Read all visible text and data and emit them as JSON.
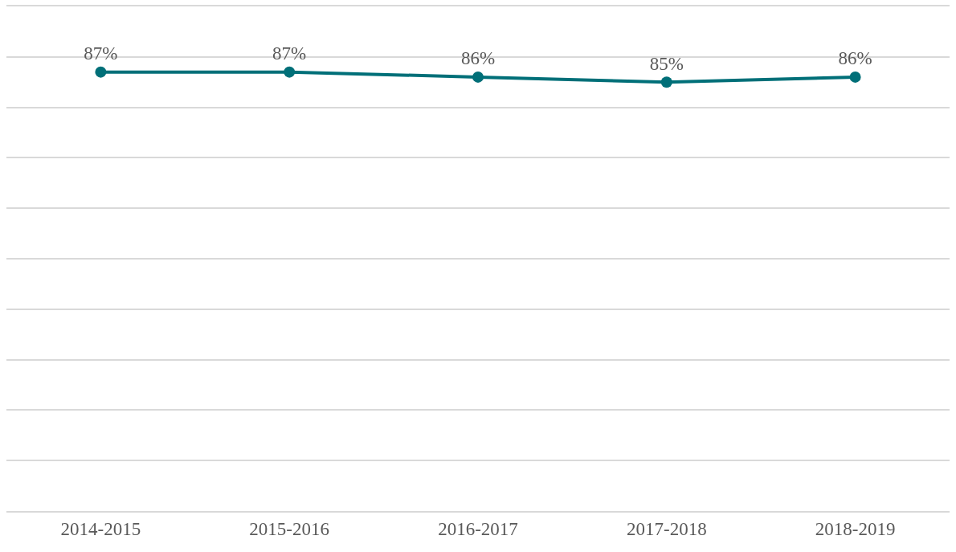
{
  "chart_data": {
    "type": "line",
    "categories": [
      "2014-2015",
      "2015-2016",
      "2016-2017",
      "2017-2018",
      "2018-2019"
    ],
    "series": [
      {
        "color": "#006f78",
        "values": [
          87,
          87,
          86,
          85,
          86
        ],
        "value_labels": [
          "87%",
          "87%",
          "86%",
          "85%",
          "86%"
        ]
      }
    ],
    "ylim": [
      0,
      100
    ],
    "yticks": [
      {
        "value": 0,
        "label": null
      },
      {
        "value": 10,
        "label": null
      },
      {
        "value": 20,
        "label": null
      },
      {
        "value": 30,
        "label": null
      },
      {
        "value": 40,
        "label": null
      },
      {
        "value": 50,
        "label": null
      },
      {
        "value": 60,
        "label": null
      },
      {
        "value": 70,
        "label": null
      },
      {
        "value": 80,
        "label": null
      },
      {
        "value": 90,
        "label": null
      },
      {
        "value": 100,
        "label": null
      }
    ],
    "tick_labels": "x",
    "grid": "y",
    "marker": "circle",
    "line_style": "solid"
  }
}
